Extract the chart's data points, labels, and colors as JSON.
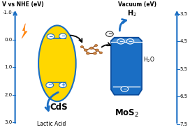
{
  "bg_color": "#ffffff",
  "left_axis_label": "V vs NHE (eV)",
  "right_axis_label": "Vacuum (eV)",
  "left_ticks": [
    -1.0,
    0.0,
    1.0,
    2.0,
    3.0
  ],
  "right_ticks": [
    3.5,
    4.5,
    5.5,
    6.5,
    7.5
  ],
  "cds_color": "#FFD700",
  "cds_edge_color": "#1a6ec4",
  "cds_label": "CdS",
  "mos2_color": "#1a6ec4",
  "mos2_label": "MoS$_2$",
  "mos2_dark": "#0a4a9a",
  "mos2_light": "#4a8fd4",
  "lightning_color": "#FF8C00",
  "blue_color": "#1a6ec4",
  "black_color": "#111111",
  "lactic_acid_label": "Lactic Acid",
  "h2_label": "H$_2$",
  "h2o_label": "H$_2$O",
  "brown_color": "#8B4513",
  "tan_color": "#CD853F"
}
